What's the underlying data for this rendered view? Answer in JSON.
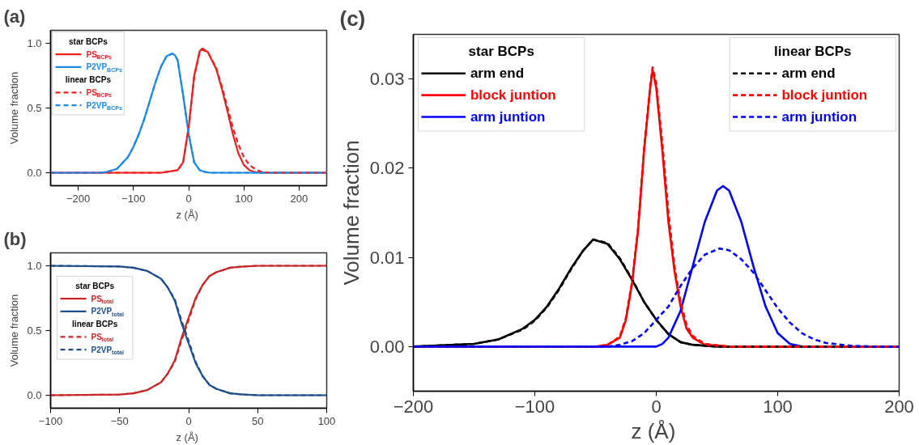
{
  "chart_data": [
    {
      "type": "line",
      "title": "(a)",
      "xlabel": "z  (Å)",
      "ylabel": "Volume fraction",
      "xlim": [
        -250,
        250
      ],
      "ylim": [
        -0.1,
        1.1
      ],
      "xticks": [
        -200,
        -100,
        0,
        100,
        200
      ],
      "yticks": [
        {
          "value": 0,
          "label": "0.0"
        },
        {
          "value": 0.5,
          "label": "0.5"
        },
        {
          "value": 1,
          "label": "1.0"
        }
      ],
      "legend": "top left",
      "annotations": [
        "star BCPs",
        "linear BCPs"
      ],
      "series": [
        {
          "name": "PS$_{BCPs}$",
          "color": "#f01e1e",
          "line_style": "solid",
          "x": [
            -250,
            -50,
            -20,
            -10,
            0,
            10,
            20,
            25,
            35,
            50,
            60,
            70,
            80,
            90,
            100,
            110,
            120,
            130,
            250
          ],
          "values": [
            0,
            0,
            0.02,
            0.08,
            0.35,
            0.75,
            0.94,
            0.96,
            0.93,
            0.8,
            0.65,
            0.48,
            0.3,
            0.15,
            0.06,
            0.02,
            0.005,
            0,
            0
          ]
        },
        {
          "name": "P2VP$_{BCPs}$",
          "color": "#1e88e5",
          "line_style": "solid",
          "x": [
            -250,
            -160,
            -150,
            -130,
            -110,
            -100,
            -90,
            -80,
            -70,
            -60,
            -50,
            -40,
            -30,
            -25,
            -20,
            -10,
            0,
            10,
            20,
            30,
            40,
            250
          ],
          "values": [
            0,
            0,
            0.005,
            0.03,
            0.12,
            0.2,
            0.3,
            0.42,
            0.56,
            0.7,
            0.82,
            0.9,
            0.92,
            0.91,
            0.87,
            0.6,
            0.3,
            0.08,
            0.02,
            0.005,
            0,
            0
          ]
        },
        {
          "name": "PS$_{BCPs}$",
          "color": "#f01e1e",
          "line_style": "dashed",
          "x": [
            -250,
            -50,
            -20,
            -10,
            0,
            10,
            20,
            25,
            35,
            50,
            60,
            70,
            80,
            90,
            100,
            110,
            120,
            130,
            140,
            150,
            250
          ],
          "values": [
            0,
            0,
            0.02,
            0.08,
            0.35,
            0.74,
            0.93,
            0.95,
            0.93,
            0.81,
            0.67,
            0.51,
            0.35,
            0.22,
            0.12,
            0.06,
            0.03,
            0.01,
            0.003,
            0,
            0
          ]
        },
        {
          "name": "P2VP$_{BCPs}$",
          "color": "#1e88e5",
          "line_style": "dashed",
          "x": [
            -250,
            -160,
            -150,
            -130,
            -110,
            -100,
            -90,
            -80,
            -70,
            -60,
            -50,
            -40,
            -30,
            -25,
            -20,
            -10,
            0,
            10,
            20,
            30,
            40,
            250
          ],
          "values": [
            0,
            0,
            0.005,
            0.03,
            0.12,
            0.2,
            0.3,
            0.42,
            0.56,
            0.7,
            0.82,
            0.9,
            0.92,
            0.91,
            0.87,
            0.6,
            0.3,
            0.08,
            0.02,
            0.005,
            0,
            0
          ]
        }
      ]
    },
    {
      "type": "line",
      "title": "(b)",
      "xlabel": "z  (Å)",
      "ylabel": "Volume fraction",
      "xlim": [
        -100,
        100
      ],
      "ylim": [
        -0.1,
        1.1
      ],
      "xticks": [
        -100,
        -50,
        0,
        50,
        100
      ],
      "yticks": [
        {
          "value": 0,
          "label": "0.0"
        },
        {
          "value": 0.5,
          "label": "0.5"
        },
        {
          "value": 1,
          "label": "1.0"
        }
      ],
      "legend": "left",
      "annotations": [
        "star BCPs",
        "linear BCPs"
      ],
      "series": [
        {
          "name": "PS$_{total}$",
          "color": "#c62828",
          "line_style": "solid",
          "x": [
            -100,
            -50,
            -40,
            -30,
            -20,
            -15,
            -10,
            -5,
            0,
            5,
            10,
            15,
            20,
            30,
            40,
            50,
            100
          ],
          "values": [
            0,
            0.005,
            0.015,
            0.04,
            0.1,
            0.17,
            0.27,
            0.45,
            0.6,
            0.75,
            0.85,
            0.92,
            0.95,
            0.985,
            0.995,
            1,
            1
          ]
        },
        {
          "name": "P2VP$_{total}$",
          "color": "#1f4e8c",
          "line_style": "solid",
          "x": [
            -100,
            -50,
            -40,
            -30,
            -20,
            -15,
            -10,
            -5,
            0,
            5,
            10,
            15,
            20,
            30,
            40,
            50,
            100
          ],
          "values": [
            1,
            0.995,
            0.985,
            0.96,
            0.9,
            0.83,
            0.73,
            0.55,
            0.4,
            0.25,
            0.15,
            0.08,
            0.05,
            0.015,
            0.005,
            0,
            0
          ]
        },
        {
          "name": "PS$_{total}$",
          "color": "#c62828",
          "line_style": "dashed",
          "x": [
            -100,
            -50,
            -40,
            -30,
            -20,
            -15,
            -10,
            -5,
            0,
            5,
            10,
            15,
            20,
            30,
            40,
            50,
            100
          ],
          "values": [
            0,
            0.005,
            0.015,
            0.04,
            0.1,
            0.17,
            0.26,
            0.43,
            0.58,
            0.74,
            0.85,
            0.92,
            0.95,
            0.985,
            0.995,
            1,
            1
          ]
        },
        {
          "name": "P2VP$_{total}$",
          "color": "#1f4e8c",
          "line_style": "dashed",
          "x": [
            -100,
            -50,
            -40,
            -30,
            -20,
            -15,
            -10,
            -5,
            0,
            5,
            10,
            15,
            20,
            30,
            40,
            50,
            100
          ],
          "values": [
            1,
            0.995,
            0.985,
            0.96,
            0.9,
            0.83,
            0.74,
            0.57,
            0.42,
            0.26,
            0.15,
            0.08,
            0.05,
            0.015,
            0.005,
            0,
            0
          ]
        }
      ]
    },
    {
      "type": "line",
      "title": "(c)",
      "xlabel": "z  (Å)",
      "ylabel": "Volume fraction",
      "xlim": [
        -200,
        200
      ],
      "ylim": [
        -0.005,
        0.035
      ],
      "xticks": [
        -200,
        -100,
        0,
        100,
        200
      ],
      "yticks": [
        {
          "value": 0,
          "label": "0.00"
        },
        {
          "value": 0.01,
          "label": "0.01"
        },
        {
          "value": 0.02,
          "label": "0.02"
        },
        {
          "value": 0.03,
          "label": "0.03"
        }
      ],
      "legend": "top",
      "annotations": [
        "star BCPs",
        "linear BCPs"
      ],
      "series": [
        {
          "name": "arm end",
          "color": "#000000",
          "line_style": "solid",
          "x": [
            -200,
            -150,
            -130,
            -110,
            -100,
            -90,
            -80,
            -70,
            -60,
            -52,
            -40,
            -30,
            -20,
            -10,
            0,
            10,
            20,
            30,
            50,
            200
          ],
          "values": [
            0,
            0.0003,
            0.0008,
            0.002,
            0.003,
            0.0045,
            0.0065,
            0.0088,
            0.0108,
            0.012,
            0.0115,
            0.0098,
            0.0075,
            0.005,
            0.003,
            0.0014,
            0.0005,
            0.0002,
            0,
            0
          ]
        },
        {
          "name": "block juntion",
          "color": "#ff0000",
          "line_style": "solid",
          "x": [
            -200,
            -50,
            -40,
            -30,
            -25,
            -20,
            -15,
            -10,
            -5,
            -3,
            0,
            5,
            10,
            15,
            20,
            25,
            30,
            40,
            60,
            200
          ],
          "values": [
            0,
            0,
            0.0002,
            0.001,
            0.003,
            0.007,
            0.013,
            0.022,
            0.029,
            0.031,
            0.029,
            0.022,
            0.014,
            0.0085,
            0.0045,
            0.002,
            0.001,
            0.0002,
            0,
            0
          ]
        },
        {
          "name": "arm juntion",
          "color": "#0000ff",
          "line_style": "solid",
          "x": [
            -200,
            0,
            5,
            10,
            20,
            30,
            40,
            50,
            55,
            60,
            70,
            80,
            90,
            100,
            110,
            120,
            200
          ],
          "values": [
            0,
            0,
            0.0003,
            0.001,
            0.004,
            0.009,
            0.014,
            0.0175,
            0.018,
            0.0175,
            0.014,
            0.009,
            0.0045,
            0.0015,
            0.0003,
            0,
            0
          ]
        },
        {
          "name": "arm end",
          "color": "#000000",
          "line_style": "dashed",
          "x": [
            -200,
            -150,
            -130,
            -110,
            -100,
            -90,
            -80,
            -70,
            -60,
            -52,
            -40,
            -30,
            -20,
            -10,
            0,
            10,
            20,
            30,
            50,
            200
          ],
          "values": [
            0,
            0.0003,
            0.0008,
            0.0019,
            0.0029,
            0.0044,
            0.0064,
            0.0087,
            0.0108,
            0.012,
            0.0116,
            0.0099,
            0.0076,
            0.005,
            0.003,
            0.0014,
            0.0005,
            0.0002,
            0,
            0
          ]
        },
        {
          "name": "block juntion",
          "color": "#ff0000",
          "line_style": "dashed",
          "x": [
            -200,
            -50,
            -40,
            -30,
            -25,
            -20,
            -15,
            -10,
            -5,
            -3,
            0,
            5,
            10,
            15,
            20,
            25,
            30,
            40,
            60,
            200
          ],
          "values": [
            0,
            0,
            0.0002,
            0.0011,
            0.0032,
            0.0072,
            0.0132,
            0.0222,
            0.0292,
            0.0313,
            0.0295,
            0.0228,
            0.015,
            0.009,
            0.005,
            0.0024,
            0.0012,
            0.0003,
            0,
            0
          ]
        },
        {
          "name": "arm juntion",
          "color": "#0000ff",
          "line_style": "dashed",
          "x": [
            -200,
            -40,
            -30,
            -20,
            -10,
            0,
            10,
            20,
            30,
            40,
            52,
            60,
            70,
            80,
            90,
            100,
            110,
            120,
            130,
            140,
            160,
            180,
            200
          ],
          "values": [
            0,
            0,
            0.0002,
            0.0006,
            0.0015,
            0.003,
            0.0045,
            0.0068,
            0.0088,
            0.0103,
            0.011,
            0.0108,
            0.0098,
            0.0083,
            0.0063,
            0.0043,
            0.0027,
            0.0015,
            0.0008,
            0.0004,
            0.0001,
            0,
            0
          ]
        }
      ]
    }
  ]
}
